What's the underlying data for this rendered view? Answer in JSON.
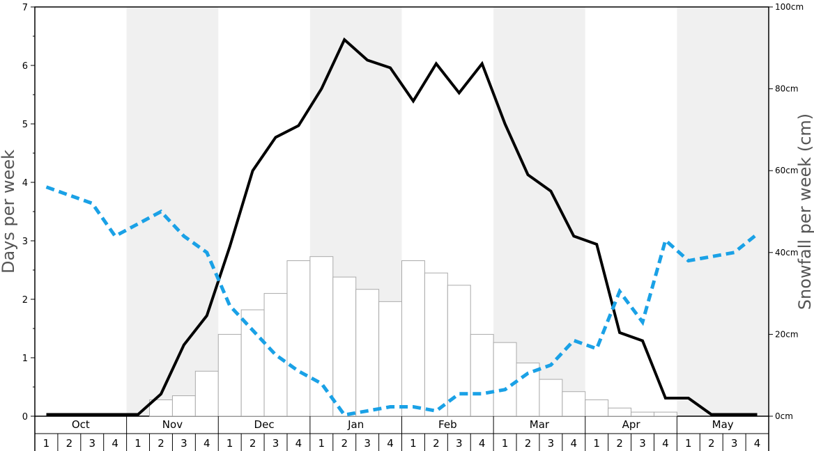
{
  "chart_data": {
    "type": "bar",
    "months": [
      "Oct",
      "Nov",
      "Dec",
      "Jan",
      "Feb",
      "Mar",
      "Apr",
      "May"
    ],
    "weeks": [
      "1",
      "2",
      "3",
      "4"
    ],
    "ylabel_left": "Days per week",
    "ylabel_right": "Snowfall per week (cm)",
    "left_axis": {
      "ylim": [
        0,
        7
      ],
      "tick_labels": [
        "0",
        "1",
        "2",
        "3",
        "4",
        "5",
        "6",
        "7"
      ]
    },
    "right_axis": {
      "ylim": [
        0,
        100
      ],
      "tick_labels": [
        "0cm",
        "20cm",
        "40cm",
        "60cm",
        "80cm",
        "100cm"
      ]
    },
    "shaded_months": [
      "Nov",
      "Jan",
      "Mar",
      "May"
    ],
    "colors": {
      "snow_days_line": "#000000",
      "snowfall_line": "#1aa1e6",
      "bar_fill": "#ffffff",
      "bar_stroke": "#aaaaaa",
      "shade": "#f0f0f0"
    },
    "series": [
      {
        "kind": "bar",
        "axis": "left",
        "values": [
          0,
          0,
          0,
          0,
          0,
          0.28,
          0.35,
          0.77,
          1.4,
          1.82,
          2.1,
          2.66,
          2.73,
          2.38,
          2.17,
          1.96,
          2.66,
          2.45,
          2.24,
          1.4,
          1.26,
          0.91,
          0.63,
          0.42,
          0.28,
          0.14,
          0.07,
          0.07,
          0,
          0,
          0,
          0
        ]
      },
      {
        "kind": "line",
        "style": "solid",
        "axis": "left",
        "values": [
          0.03,
          0.03,
          0.03,
          0.03,
          0.03,
          0.38,
          1.22,
          1.72,
          2.9,
          4.2,
          4.77,
          4.97,
          5.6,
          6.44,
          6.09,
          5.96,
          5.39,
          6.03,
          5.53,
          6.03,
          5.0,
          4.13,
          3.85,
          3.08,
          2.94,
          1.43,
          1.29,
          0.31,
          0.31,
          0.03,
          0.03,
          0.03
        ]
      },
      {
        "kind": "line",
        "style": "dashed",
        "axis": "right",
        "values": [
          56,
          54,
          52,
          44,
          47,
          50,
          44,
          40,
          27,
          21,
          15,
          11,
          8,
          0.3,
          1.3,
          2.3,
          2.3,
          1.3,
          5.5,
          5.5,
          6.5,
          10.5,
          12.5,
          18.5,
          16.5,
          30.5,
          23,
          43,
          38,
          39,
          40,
          44.5
        ]
      }
    ]
  }
}
